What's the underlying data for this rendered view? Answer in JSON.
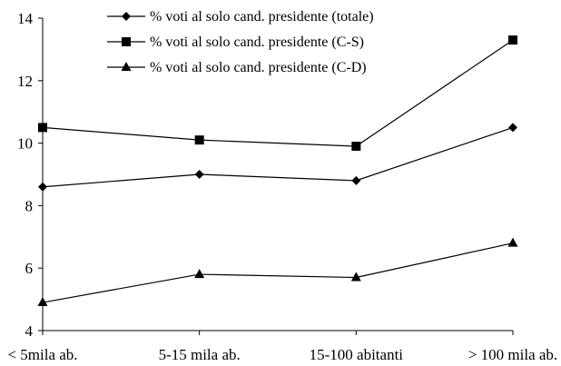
{
  "chart_data": {
    "type": "line",
    "categories": [
      "< 5mila ab.",
      "5-15 mila ab.",
      "15-100 abitanti",
      "> 100 mila ab."
    ],
    "ylim": [
      4,
      14
    ],
    "yticks": [
      4,
      6,
      8,
      10,
      12,
      14
    ],
    "grid": false,
    "legend_position": "top-center",
    "series": [
      {
        "name": "% voti al solo cand. presidente (totale)",
        "marker": "diamond",
        "values": [
          8.6,
          9.0,
          8.8,
          10.5
        ]
      },
      {
        "name": "% voti al solo cand. presidente (C-S)",
        "marker": "square",
        "values": [
          10.5,
          10.1,
          9.9,
          13.3
        ]
      },
      {
        "name": "% voti al solo cand. presidente (C-D)",
        "marker": "triangle",
        "values": [
          4.9,
          5.8,
          5.7,
          6.8
        ]
      }
    ],
    "colors": {
      "line": "#000000",
      "axis": "#000000",
      "background": "#ffffff"
    }
  }
}
